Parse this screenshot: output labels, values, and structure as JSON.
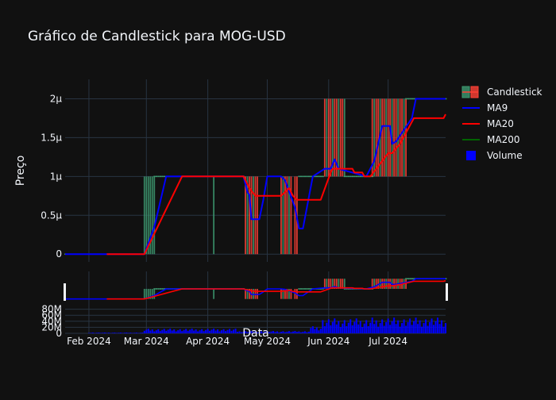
{
  "chart_data": {
    "type": "candlestick",
    "title": "Gráfico de Candlestick para MOG-USD",
    "xlabel": "Data",
    "ylabel": "Preço",
    "x_ticks": [
      "Feb 2024",
      "Mar 2024",
      "Apr 2024",
      "May 2024",
      "Jun 2024",
      "Jul 2024"
    ],
    "y_ticks_price": [
      "0",
      "0.5μ",
      "1μ",
      "1.5μ",
      "2μ"
    ],
    "y_ticks_volume": [
      "0",
      "20M",
      "40M",
      "60M",
      "80M"
    ],
    "price_unit": "μ (micro USD)",
    "ylim_price": [
      -0.1,
      2.25
    ],
    "ylim_volume": [
      0,
      100
    ],
    "x_start": "2024-01-20",
    "x_end": "2024-07-30",
    "legend": {
      "position": "top-right",
      "items": [
        {
          "name": "Candlestick",
          "type": "candle"
        },
        {
          "name": "MA9",
          "type": "line"
        },
        {
          "name": "MA20",
          "type": "line"
        },
        {
          "name": "MA200",
          "type": "line"
        },
        {
          "name": "Volume",
          "type": "square"
        }
      ]
    },
    "colors": {
      "increasing": "#3d9970",
      "decreasing": "#ff4136",
      "ma9": "#0000ff",
      "ma20": "#ff0000",
      "ma200": "#006400",
      "volume": "#0000ff",
      "background": "#111111",
      "grid": "#283442",
      "text": "#f2f5fa"
    },
    "ma9": [
      [
        "2024-01-20",
        0
      ],
      [
        "2024-02-04",
        0
      ],
      [
        "2024-02-04",
        0
      ],
      [
        "2024-02-29",
        0
      ],
      [
        "2024-03-05",
        0.35
      ],
      [
        "2024-03-11",
        1.0
      ],
      [
        "2024-04-19",
        1.0
      ],
      [
        "2024-04-21",
        0.8
      ],
      [
        "2024-04-22",
        0.76
      ],
      [
        "2024-04-23",
        0.45
      ],
      [
        "2024-04-27",
        0.45
      ],
      [
        "2024-04-29",
        0.7
      ],
      [
        "2024-05-01",
        1.0
      ],
      [
        "2024-05-08",
        1.0
      ],
      [
        "2024-05-10",
        0.95
      ],
      [
        "2024-05-15",
        0.6
      ],
      [
        "2024-05-17",
        0.33
      ],
      [
        "2024-05-19",
        0.33
      ],
      [
        "2024-05-24",
        1.0
      ],
      [
        "2024-05-30",
        1.1
      ],
      [
        "2024-06-02",
        1.1
      ],
      [
        "2024-06-04",
        1.22
      ],
      [
        "2024-06-06",
        1.1
      ],
      [
        "2024-06-20",
        1.0
      ],
      [
        "2024-06-24",
        1.2
      ],
      [
        "2024-06-28",
        1.65
      ],
      [
        "2024-07-02",
        1.65
      ],
      [
        "2024-07-03",
        1.42
      ],
      [
        "2024-07-05",
        1.45
      ],
      [
        "2024-07-13",
        1.75
      ],
      [
        "2024-07-15",
        2.0
      ],
      [
        "2024-07-30",
        2.0
      ]
    ],
    "ma20": [
      [
        "2024-02-10",
        0
      ],
      [
        "2024-02-29",
        0
      ],
      [
        "2024-03-19",
        1.0
      ],
      [
        "2024-04-19",
        1.0
      ],
      [
        "2024-04-22",
        0.85
      ],
      [
        "2024-04-25",
        0.75
      ],
      [
        "2024-05-08",
        0.75
      ],
      [
        "2024-05-12",
        0.85
      ],
      [
        "2024-05-14",
        0.75
      ],
      [
        "2024-05-16",
        0.7
      ],
      [
        "2024-05-28",
        0.7
      ],
      [
        "2024-06-02",
        1.05
      ],
      [
        "2024-06-03",
        1.1
      ],
      [
        "2024-06-13",
        1.1
      ],
      [
        "2024-06-14",
        1.05
      ],
      [
        "2024-06-18",
        1.05
      ],
      [
        "2024-06-19",
        1.0
      ],
      [
        "2024-06-22",
        1.0
      ],
      [
        "2024-07-01",
        1.3
      ],
      [
        "2024-07-03",
        1.3
      ],
      [
        "2024-07-07",
        1.42
      ],
      [
        "2024-07-14",
        1.75
      ],
      [
        "2024-07-29",
        1.75
      ],
      [
        "2024-07-30",
        1.8
      ]
    ],
    "ma200": [],
    "candle_bands": [
      {
        "start": "2024-02-29",
        "end": "2024-03-05",
        "low": 0,
        "high": 1.0,
        "dir": "up"
      },
      {
        "start": "2024-03-05",
        "end": "2024-04-19",
        "low": 1.0,
        "high": 1.0,
        "dir": "flat"
      },
      {
        "start": "2024-04-04",
        "end": "2024-04-04",
        "low": 0,
        "high": 1.0,
        "dir": "up"
      },
      {
        "start": "2024-04-20",
        "end": "2024-04-26",
        "low": 0,
        "high": 1.0,
        "dir": "mixed"
      },
      {
        "start": "2024-05-08",
        "end": "2024-05-13",
        "low": 0,
        "high": 1.0,
        "dir": "mixed"
      },
      {
        "start": "2024-05-15",
        "end": "2024-05-16",
        "low": 0,
        "high": 1.0,
        "dir": "down"
      },
      {
        "start": "2024-05-17",
        "end": "2024-05-29",
        "low": 1.0,
        "high": 1.0,
        "dir": "flat"
      },
      {
        "start": "2024-05-30",
        "end": "2024-06-09",
        "low": 1.0,
        "high": 2.0,
        "dir": "mixed"
      },
      {
        "start": "2024-06-09",
        "end": "2024-06-23",
        "low": 1.0,
        "high": 1.0,
        "dir": "flat"
      },
      {
        "start": "2024-06-23",
        "end": "2024-07-10",
        "low": 1.0,
        "high": 2.0,
        "dir": "mixed"
      },
      {
        "start": "2024-07-10",
        "end": "2024-07-30",
        "low": 2.0,
        "high": 2.0,
        "dir": "flat"
      }
    ],
    "volume": [
      {
        "start": "2024-02-01",
        "end": "2024-02-28",
        "level": 2
      },
      {
        "start": "2024-02-29",
        "end": "2024-04-15",
        "level": 12
      },
      {
        "start": "2024-04-16",
        "end": "2024-05-22",
        "level": 6
      },
      {
        "start": "2024-05-23",
        "end": "2024-05-28",
        "level": 18
      },
      {
        "start": "2024-05-29",
        "end": "2024-06-22",
        "level": 38
      },
      {
        "start": "2024-06-23",
        "end": "2024-07-30",
        "level": 40
      }
    ]
  }
}
